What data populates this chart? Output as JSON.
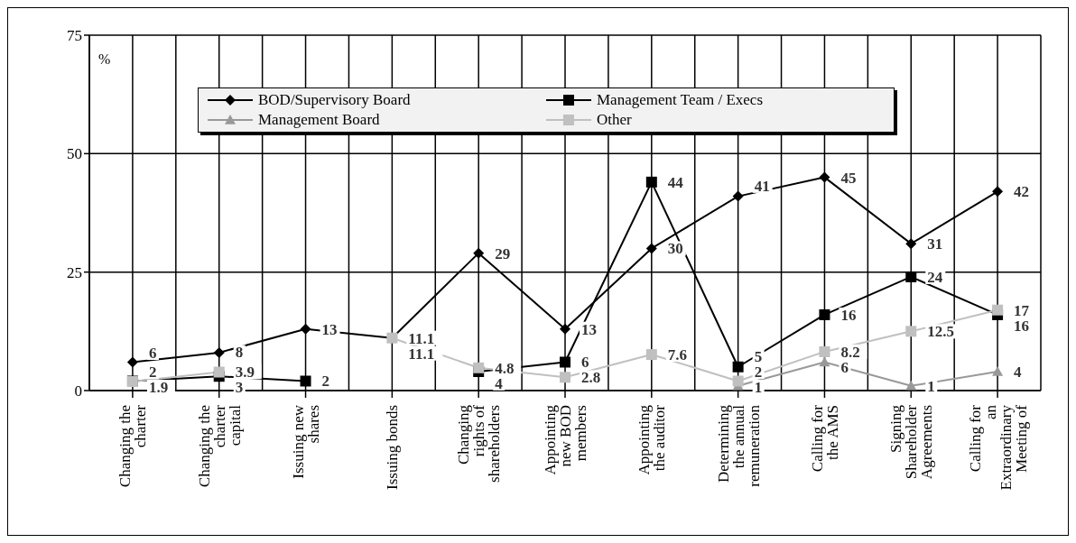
{
  "chart_data": {
    "type": "line",
    "ylabel": "%",
    "categories": [
      "Changing the charter",
      "Changing the charter capital",
      "Issuing new shares",
      "Issuing bonds",
      "Changing rights of shareholders",
      "Appointing new BOD members",
      "Appointing the auditor",
      "Determining the annual remuneration",
      "Calling for the AMS",
      "Signing Shareholder Agreements",
      "Calling for an Extraordinary Meeting of"
    ],
    "series": [
      {
        "name": "BOD/Supervisory Board",
        "color": "#000000",
        "marker": "diamond",
        "values": [
          6,
          8,
          13,
          11.1,
          29,
          13,
          30,
          41,
          45,
          31,
          42
        ]
      },
      {
        "name": "Management Team / Execs",
        "color": "#000000",
        "marker": "square",
        "values": [
          2,
          3,
          2,
          null,
          4,
          6,
          44,
          5,
          16,
          24,
          16
        ]
      },
      {
        "name": "Management Board",
        "color": "#999999",
        "marker": "triangle",
        "values": [
          null,
          null,
          null,
          null,
          null,
          null,
          null,
          1,
          6,
          1,
          4
        ]
      },
      {
        "name": "Other",
        "color": "#c0c0c0",
        "marker": "square",
        "values": [
          1.9,
          3.9,
          null,
          11.1,
          4.8,
          2.8,
          7.6,
          2,
          8.2,
          12.5,
          17
        ]
      }
    ],
    "ylim": [
      0,
      75
    ],
    "yticks": [
      0,
      25,
      50,
      75
    ],
    "grid": true,
    "legend": "top",
    "data_labels": true,
    "line_style": "solid"
  }
}
